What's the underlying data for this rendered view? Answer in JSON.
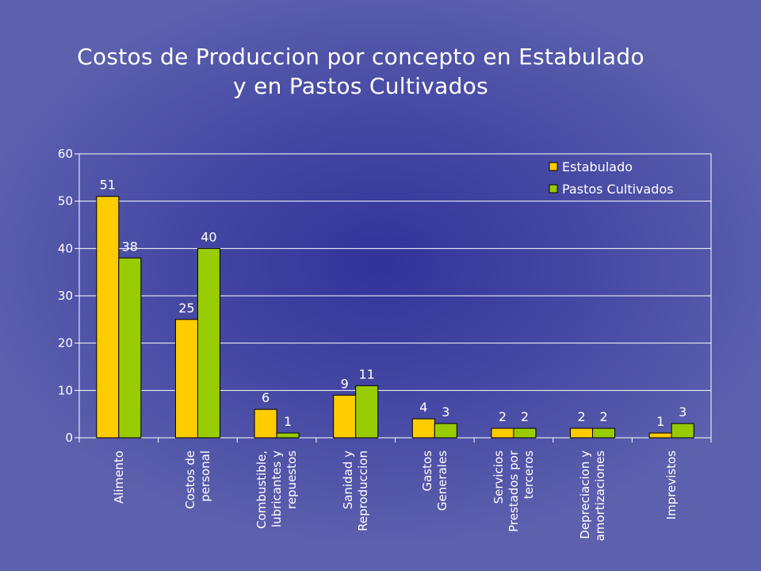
{
  "chart_data": {
    "type": "bar",
    "title_lines": [
      "Costos de Produccion por concepto en Estabulado",
      "y en Pastos Cultivados"
    ],
    "categories": [
      [
        "Alimento"
      ],
      [
        "Costos de",
        "personal"
      ],
      [
        "Combustible,",
        "lubricantes y",
        "repuestos"
      ],
      [
        "Sanidad y",
        "Reproduccion"
      ],
      [
        "Gastos",
        "Generales"
      ],
      [
        "Servicios",
        "Prestados por",
        "terceros"
      ],
      [
        "Depreciacion y",
        "amortizaciones"
      ],
      [
        "Imprevistos"
      ]
    ],
    "series": [
      {
        "name": "Estabulado",
        "color": "#ffcc00",
        "values": [
          51,
          25,
          6,
          9,
          4,
          2,
          2,
          1
        ]
      },
      {
        "name": "Pastos Cultivados",
        "color": "#99cc00",
        "values": [
          38,
          40,
          1,
          11,
          3,
          2,
          2,
          3
        ]
      }
    ],
    "ylim": [
      0,
      60
    ],
    "yticks": [
      0,
      10,
      20,
      30,
      40,
      50,
      60
    ],
    "legend_position": "top-right",
    "grid": true,
    "xlabel": "",
    "ylabel": ""
  }
}
